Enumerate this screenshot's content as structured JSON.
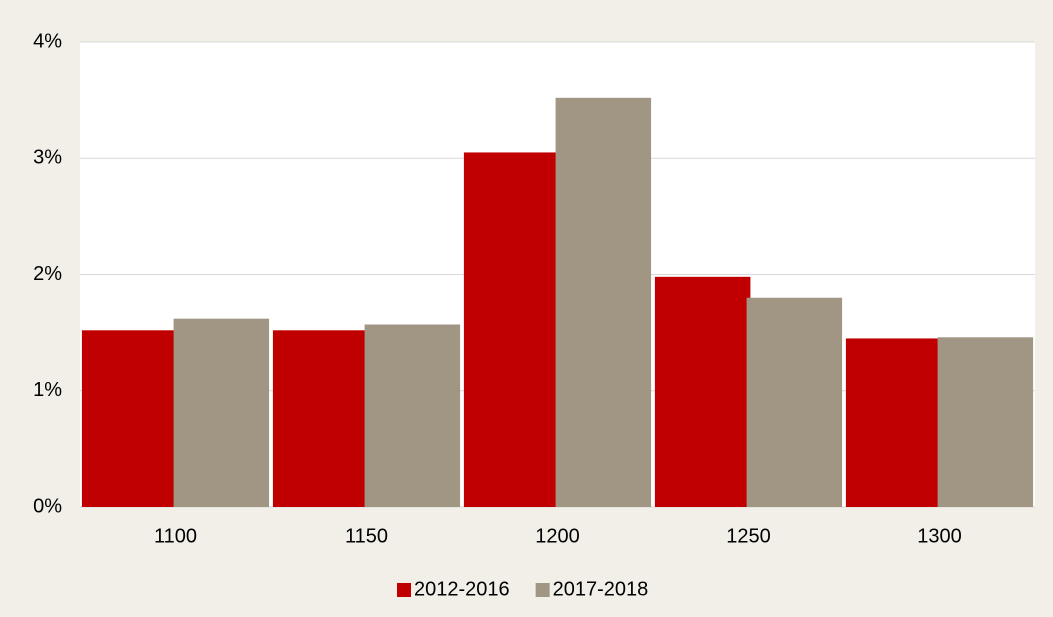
{
  "chart_data": {
    "type": "bar",
    "categories": [
      "1100",
      "1150",
      "1200",
      "1250",
      "1300"
    ],
    "series": [
      {
        "name": "2012-2016",
        "color": "#c00000",
        "values": [
          1.52,
          1.52,
          3.05,
          1.98,
          1.45
        ]
      },
      {
        "name": "2017-2018",
        "color": "#a09683",
        "values": [
          1.62,
          1.57,
          3.52,
          1.8,
          1.46
        ]
      }
    ],
    "ylim": [
      0,
      4
    ],
    "yticks": [
      {
        "value": 0,
        "label": "0%"
      },
      {
        "value": 1,
        "label": "1%"
      },
      {
        "value": 2,
        "label": "2%"
      },
      {
        "value": 3,
        "label": "3%"
      },
      {
        "value": 4,
        "label": "4%"
      }
    ],
    "grid": true,
    "legend": "bottom"
  }
}
